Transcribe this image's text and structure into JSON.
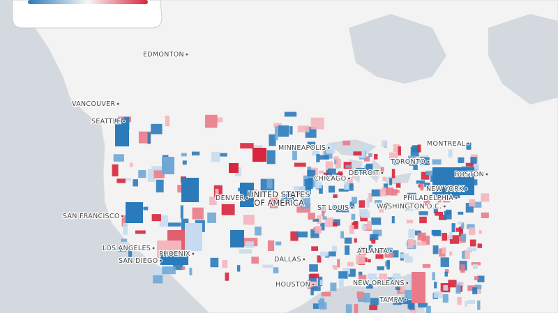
{
  "map": {
    "country_label": [
      "UNITED STATES",
      "OF AMERICA"
    ],
    "cities": [
      "EDMONTON",
      "VANCOUVER",
      "SEATTLE",
      "MINNEAPOLIS",
      "MONTREAL",
      "TORONTO",
      "DETROIT",
      "BOSTON",
      "CHICAGO",
      "NEW YORK",
      "DENVER",
      "PHILADELPHIA",
      "ST LOUIS",
      "WASHINGTON D.C.",
      "SAN FRANCISCO",
      "LOS ANGELES",
      "PHOENIX",
      "SAN DIEGO",
      "ATLANTA",
      "DALLAS",
      "HOUSTON",
      "NEW ORLEANS",
      "TAMPA"
    ]
  }
}
